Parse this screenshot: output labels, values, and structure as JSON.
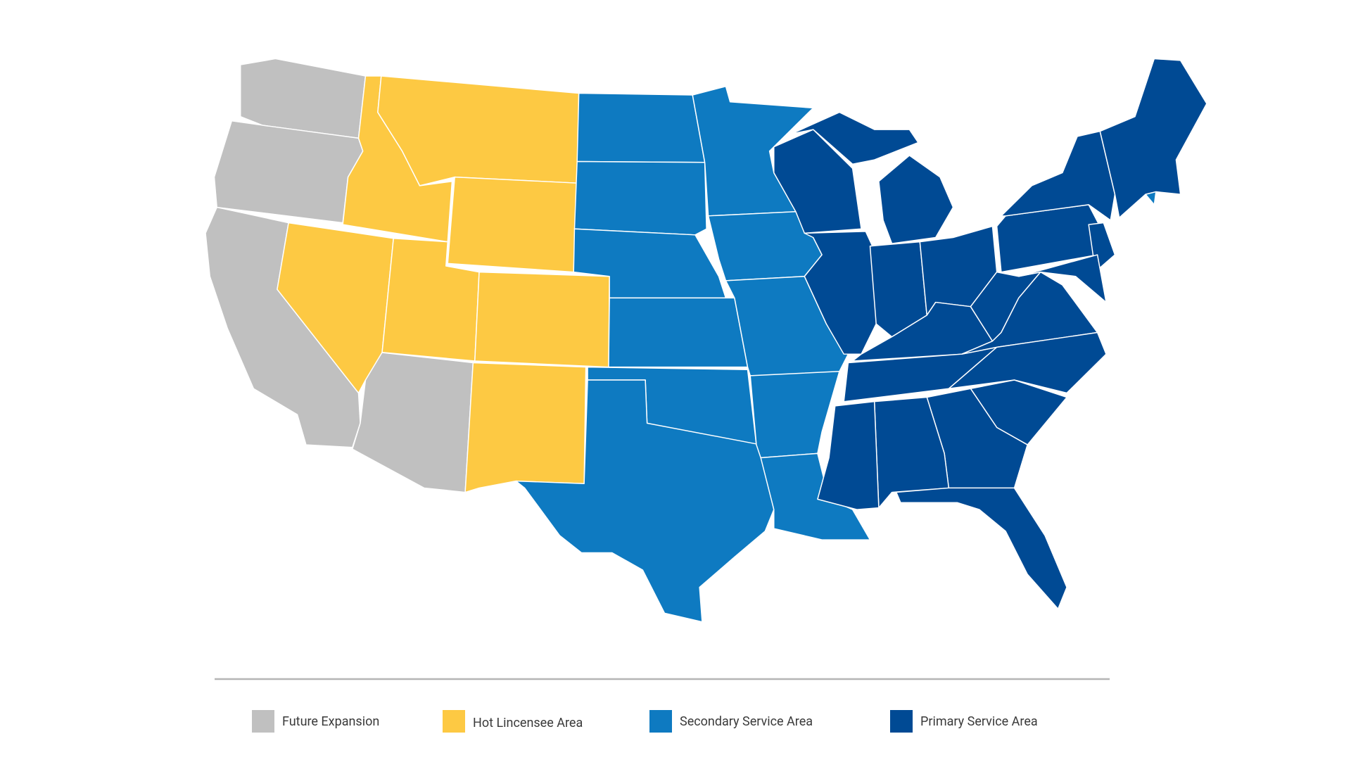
{
  "legend": {
    "items": [
      {
        "label": "Future Expansion",
        "color": "#c0c0c0"
      },
      {
        "label": "Hot Lincensee Area",
        "color": "#fdc943"
      },
      {
        "label": "Secondary Service Area",
        "color": "#0e7ac1"
      },
      {
        "label": "Primary Service Area",
        "color": "#004a94"
      }
    ]
  }
}
